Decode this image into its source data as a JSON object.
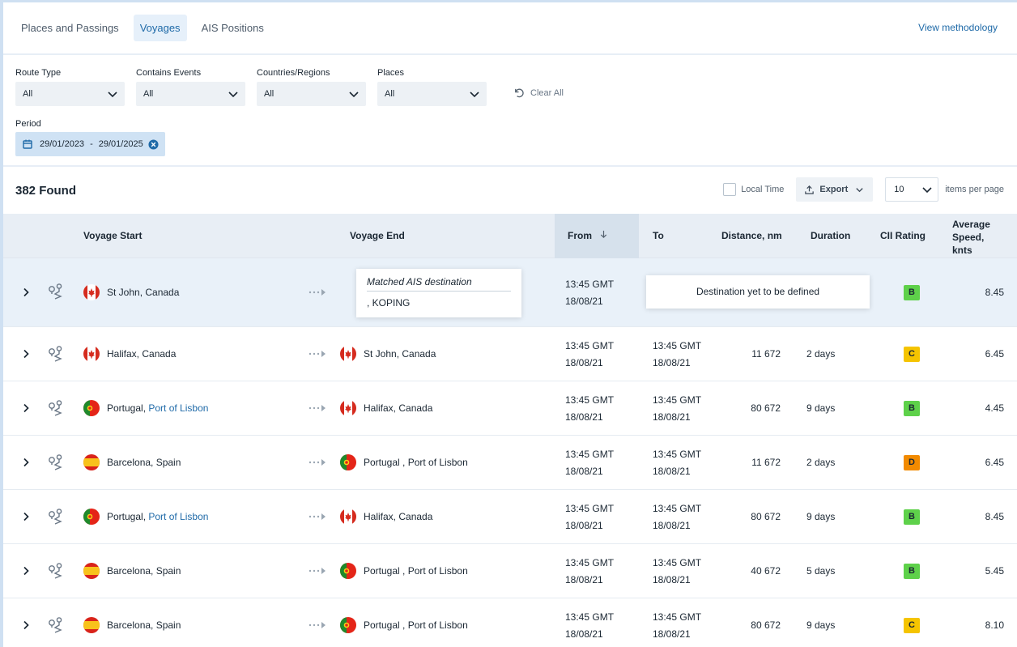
{
  "tabs": [
    {
      "label": "Places and Passings"
    },
    {
      "label": "Voyages"
    },
    {
      "label": "AIS Positions"
    }
  ],
  "view_methodology": "View methodology",
  "filters": {
    "route_type": {
      "label": "Route Type",
      "value": "All"
    },
    "contains_events": {
      "label": "Contains Events",
      "value": "All"
    },
    "countries": {
      "label": "Countries/Regions",
      "value": "All"
    },
    "places": {
      "label": "Places",
      "value": "All"
    },
    "clear_all": "Clear All",
    "period_label": "Period",
    "period_from": "29/01/2023",
    "period_sep": "-",
    "period_to": "29/01/2025"
  },
  "results": {
    "found": "382 Found",
    "local_time": "Local Time",
    "export": "Export",
    "per_page": "10",
    "per_page_label": "items per page"
  },
  "columns": {
    "voyage_start": "Voyage Start",
    "voyage_end": "Voyage End",
    "from": "From",
    "to": "To",
    "distance": "Distance, nm",
    "duration": "Duration",
    "cii": "CII Rating",
    "speed_1": "Average",
    "speed_2": "Speed,",
    "speed_3": "knts"
  },
  "colors": {
    "accent": "#1f6aa8",
    "rating_b": "#5ed14a",
    "rating_c": "#f5c400",
    "rating_d": "#f28a00"
  },
  "first_row": {
    "start_flag": "ca",
    "start_place": "St John, Canada",
    "tooltip_title": "Matched AIS destination",
    "tooltip_value": ", KOPING",
    "from_time": "13:45 GMT",
    "from_date": "18/08/21",
    "destination_msg": "Destination yet to be defined",
    "rating": "B",
    "rating_color": "#5ed14a",
    "speed": "8.45"
  },
  "rows": [
    {
      "start_flag": "ca",
      "start_place": "Halifax, Canada",
      "start_link": "",
      "end_flag": "ca",
      "end_place": "St John, Canada",
      "from_time": "13:45 GMT",
      "from_date": "18/08/21",
      "to_time": "13:45 GMT",
      "to_date": "18/08/21",
      "distance": "11 672",
      "duration": "2 days",
      "rating": "C",
      "rating_color": "#f5c400",
      "speed": "6.45"
    },
    {
      "start_flag": "pt",
      "start_place": "Portugal, ",
      "start_link": "Port of Lisbon",
      "end_flag": "ca",
      "end_place": "Halifax, Canada",
      "from_time": "13:45 GMT",
      "from_date": "18/08/21",
      "to_time": "13:45 GMT",
      "to_date": "18/08/21",
      "distance": "80 672",
      "duration": "9 days",
      "rating": "B",
      "rating_color": "#5ed14a",
      "speed": "4.45"
    },
    {
      "start_flag": "es",
      "start_place": "Barcelona, Spain",
      "start_link": "",
      "end_flag": "pt",
      "end_place": "Portugal , Port of Lisbon",
      "from_time": "13:45 GMT",
      "from_date": "18/08/21",
      "to_time": "13:45 GMT",
      "to_date": "18/08/21",
      "distance": "11 672",
      "duration": "2 days",
      "rating": "D",
      "rating_color": "#f28a00",
      "speed": "6.45"
    },
    {
      "start_flag": "pt",
      "start_place": "Portugal, ",
      "start_link": "Port of Lisbon",
      "end_flag": "ca",
      "end_place": "Halifax, Canada",
      "from_time": "13:45 GMT",
      "from_date": "18/08/21",
      "to_time": "13:45 GMT",
      "to_date": "18/08/21",
      "distance": "80 672",
      "duration": "9 days",
      "rating": "B",
      "rating_color": "#5ed14a",
      "speed": "8.45"
    },
    {
      "start_flag": "es",
      "start_place": "Barcelona, Spain",
      "start_link": "",
      "end_flag": "pt",
      "end_place": "Portugal , Port of Lisbon",
      "from_time": "13:45 GMT",
      "from_date": "18/08/21",
      "to_time": "13:45 GMT",
      "to_date": "18/08/21",
      "distance": "40 672",
      "duration": "5 days",
      "rating": "B",
      "rating_color": "#5ed14a",
      "speed": "5.45"
    },
    {
      "start_flag": "es",
      "start_place": "Barcelona, Spain",
      "start_link": "",
      "end_flag": "pt",
      "end_place": "Portugal , Port of Lisbon",
      "from_time": "13:45 GMT",
      "from_date": "18/08/21",
      "to_time": "13:45 GMT",
      "to_date": "18/08/21",
      "distance": "80 672",
      "duration": "9 days",
      "rating": "C",
      "rating_color": "#f5c400",
      "speed": "8.10"
    }
  ]
}
